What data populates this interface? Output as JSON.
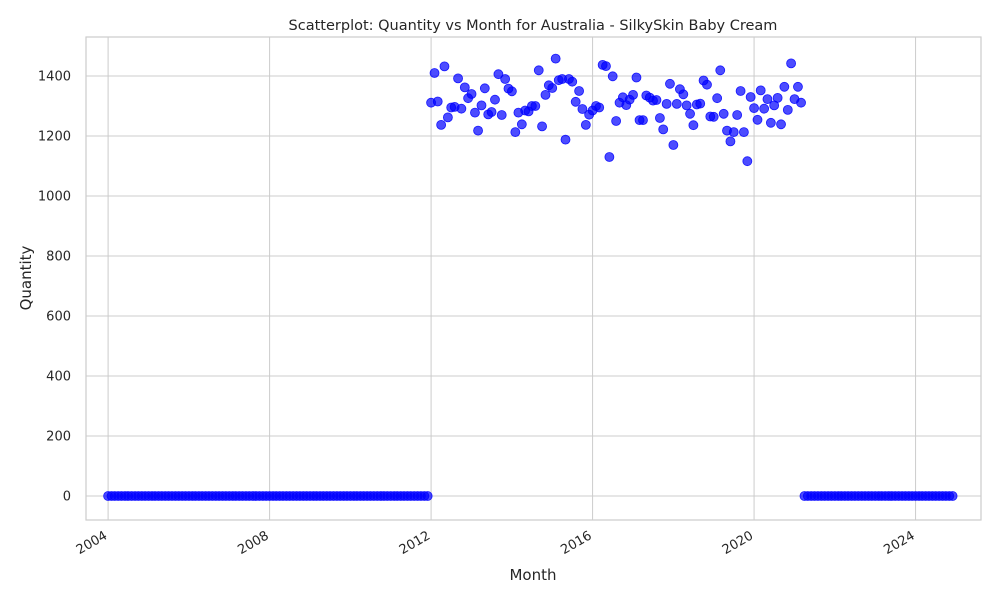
{
  "chart_data": {
    "type": "scatter",
    "title": "Scatterplot: Quantity vs Month for Australia - SilkySkin Baby Cream",
    "xlabel": "Month",
    "ylabel": "Quantity",
    "x_ticks": [
      "2004",
      "2008",
      "2012",
      "2016",
      "2020",
      "2024"
    ],
    "y_ticks": [
      "0",
      "200",
      "400",
      "600",
      "800",
      "1000",
      "1200",
      "1400"
    ],
    "xlim": [
      "2003-06-15",
      "2025-08-15"
    ],
    "ylim": [
      -80,
      1530
    ],
    "grid": true,
    "legend": "none",
    "marker_color": "#0000ff",
    "marker_alpha": 0.7,
    "series": [
      {
        "x_start": "2004-01",
        "x_frequency": "monthly",
        "values": [
          0,
          0,
          0,
          0,
          0,
          0,
          0,
          0,
          0,
          0,
          0,
          0,
          0,
          0,
          0,
          0,
          0,
          0,
          0,
          0,
          0,
          0,
          0,
          0,
          0,
          0,
          0,
          0,
          0,
          0,
          0,
          0,
          0,
          0,
          0,
          0,
          0,
          0,
          0,
          0,
          0,
          0,
          0,
          0,
          0,
          0,
          0,
          0,
          0,
          0,
          0,
          0,
          0,
          0,
          0,
          0,
          0,
          0,
          0,
          0,
          0,
          0,
          0,
          0,
          0,
          0,
          0,
          0,
          0,
          0,
          0,
          0,
          0,
          0,
          0,
          0,
          0,
          0,
          0,
          0,
          0,
          0,
          0,
          0,
          0,
          0,
          0,
          0,
          0,
          0,
          0,
          0,
          0,
          0,
          0,
          0,
          1311,
          1410,
          1315,
          1237,
          1432,
          1262,
          1295,
          1297,
          1392,
          1291,
          1362,
          1326,
          1340,
          1278,
          1218,
          1302,
          1359,
          1272,
          1280,
          1321,
          1406,
          1270,
          1390,
          1358,
          1349,
          1213,
          1278,
          1239,
          1285,
          1282,
          1300,
          1300,
          1419,
          1232,
          1337,
          1369,
          1360,
          1458,
          1386,
          1390,
          1188,
          1390,
          1381,
          1314,
          1350,
          1290,
          1237,
          1271,
          1285,
          1300,
          1295,
          1437,
          1433,
          1130,
          1399,
          1250,
          1311,
          1329,
          1303,
          1321,
          1337,
          1395,
          1253,
          1253,
          1335,
          1328,
          1318,
          1320,
          1260,
          1222,
          1307,
          1374,
          1170,
          1307,
          1356,
          1339,
          1302,
          1274,
          1236,
          1305,
          1308,
          1385,
          1371,
          1265,
          1264,
          1326,
          1419,
          1274,
          1218,
          1182,
          1213,
          1270,
          1350,
          1213,
          1116,
          1330,
          1293,
          1254,
          1352,
          1291,
          1323,
          1244,
          1302,
          1327,
          1239,
          1364,
          1287,
          1442,
          1323,
          1364,
          1311,
          0,
          0,
          0,
          0,
          0,
          0,
          0,
          0,
          0,
          0,
          0,
          0,
          0,
          0,
          0,
          0,
          0,
          0,
          0,
          0,
          0,
          0,
          0,
          0,
          0,
          0,
          0,
          0,
          0,
          0,
          0,
          0,
          0,
          0,
          0,
          0,
          0,
          0,
          0,
          0,
          0,
          0,
          0,
          0,
          0
        ]
      }
    ]
  }
}
